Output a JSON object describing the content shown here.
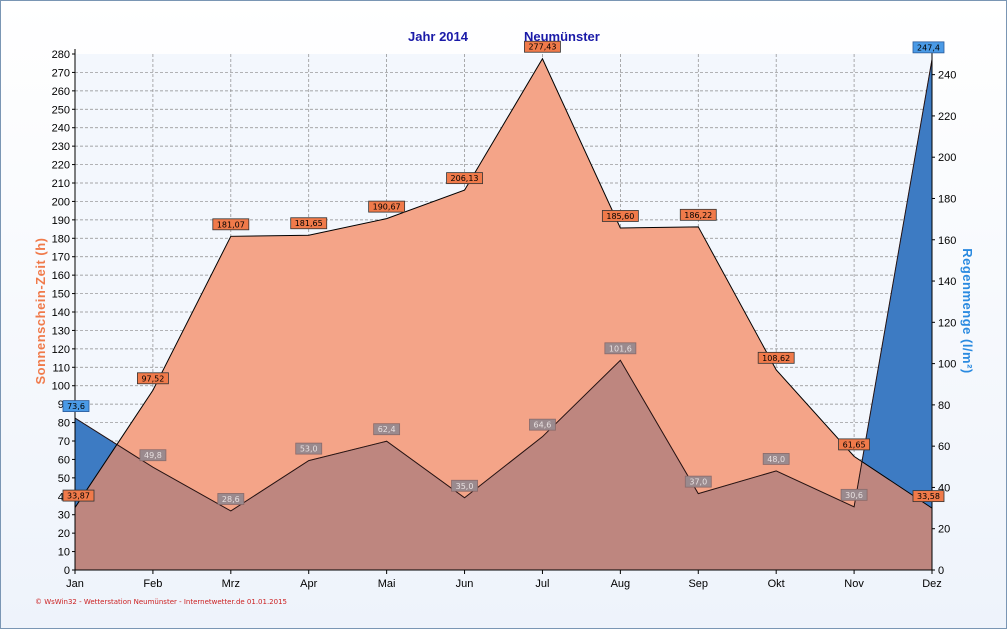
{
  "chart_data": {
    "type": "area",
    "title": "Jahr  2014",
    "subtitle": "Neumünster",
    "ylabel_left": "Sonnenschein-Zeit  (h)",
    "ylabel_right": "Regenmenge  (l/m²)",
    "categories": [
      "Jan",
      "Feb",
      "Mrz",
      "Apr",
      "Mai",
      "Jun",
      "Jul",
      "Aug",
      "Sep",
      "Okt",
      "Nov",
      "Dez"
    ],
    "ylim_left": [
      0,
      280
    ],
    "ylim_right": [
      0,
      250
    ],
    "yticks_left": [
      "0",
      "10",
      "20",
      "30",
      "40",
      "50",
      "60",
      "70",
      "80",
      "90",
      "100",
      "110",
      "120",
      "130",
      "140",
      "150",
      "160",
      "170",
      "180",
      "190",
      "200",
      "210",
      "220",
      "230",
      "240",
      "250",
      "260",
      "270",
      "280"
    ],
    "yticks_right": [
      "0",
      "20",
      "40",
      "60",
      "80",
      "100",
      "120",
      "140",
      "160",
      "180",
      "200",
      "220",
      "240"
    ],
    "grid": true,
    "series": [
      {
        "name": "Sonnenschein-Zeit",
        "axis": "left",
        "color": "#f4a488",
        "labels_color": "#f07a4a",
        "values": [
          33.87,
          97.52,
          181.07,
          181.65,
          190.67,
          206.13,
          277.43,
          185.6,
          186.22,
          108.62,
          61.65,
          33.58
        ],
        "labels": [
          "33,87",
          "97,52",
          "181,07",
          "181,65",
          "190,67",
          "206,13",
          "277,43",
          "185,60",
          "186,22",
          "108,62",
          "61,65",
          "33,58"
        ]
      },
      {
        "name": "Regenmenge",
        "axis": "right",
        "color": "#2f93f0",
        "labels_color": "#4a9ae6",
        "values": [
          73.6,
          49.8,
          28.6,
          53.0,
          62.4,
          35.0,
          64.6,
          101.6,
          37.0,
          48.0,
          30.6,
          247.4
        ],
        "labels": [
          "73,6",
          "49,8",
          "28,6",
          "53,0",
          "62,4",
          "35,0",
          "64,6",
          "101,6",
          "37,0",
          "48,0",
          "30,6",
          "247,4"
        ]
      }
    ]
  },
  "footer": "© WsWin32  -  Wetterstation Neumünster  -  Internetwetter.de  01.01.2015"
}
